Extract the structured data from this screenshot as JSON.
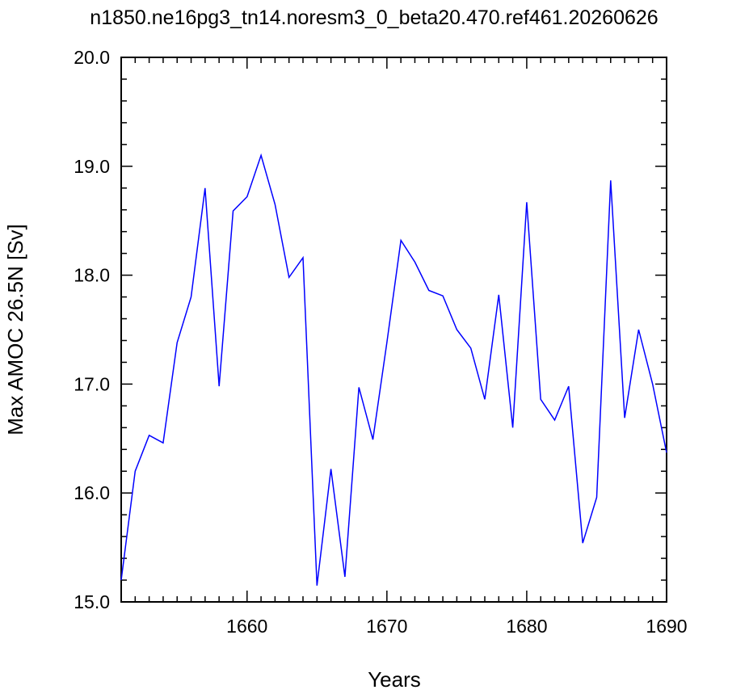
{
  "chart_data": {
    "type": "line",
    "title": "n1850.ne16pg3_tn14.noresm3_0_beta20.470.ref461.20260626",
    "xlabel": "Years",
    "ylabel": "Max AMOC 26.5N [Sv]",
    "xlim": [
      1651,
      1690
    ],
    "ylim": [
      15.0,
      20.0
    ],
    "xticks": [
      1660,
      1670,
      1680,
      1690
    ],
    "xtick_labels": [
      "1660",
      "1670",
      "1680",
      "1690"
    ],
    "yticks": [
      15.0,
      16.0,
      17.0,
      18.0,
      19.0,
      20.0
    ],
    "ytick_labels": [
      "15.0",
      "16.0",
      "17.0",
      "18.0",
      "19.0",
      "20.0"
    ],
    "grid": false,
    "series": [
      {
        "color": "#0000ff",
        "x": [
          1651,
          1652,
          1653,
          1654,
          1655,
          1656,
          1657,
          1658,
          1659,
          1660,
          1661,
          1662,
          1663,
          1664,
          1665,
          1666,
          1667,
          1668,
          1669,
          1670,
          1671,
          1672,
          1673,
          1674,
          1675,
          1676,
          1677,
          1678,
          1679,
          1680,
          1681,
          1682,
          1683,
          1684,
          1685,
          1686,
          1687,
          1688,
          1689,
          1690
        ],
        "values": [
          15.2,
          16.2,
          16.53,
          16.46,
          17.38,
          17.8,
          18.8,
          16.98,
          18.59,
          18.72,
          19.1,
          18.65,
          17.98,
          18.16,
          15.15,
          16.22,
          15.23,
          16.97,
          16.49,
          17.38,
          18.32,
          18.12,
          17.86,
          17.81,
          17.5,
          17.33,
          16.86,
          17.82,
          16.6,
          18.67,
          16.86,
          16.67,
          16.98,
          15.54,
          15.96,
          18.87,
          16.69,
          17.5,
          17.0,
          16.37
        ]
      }
    ]
  }
}
